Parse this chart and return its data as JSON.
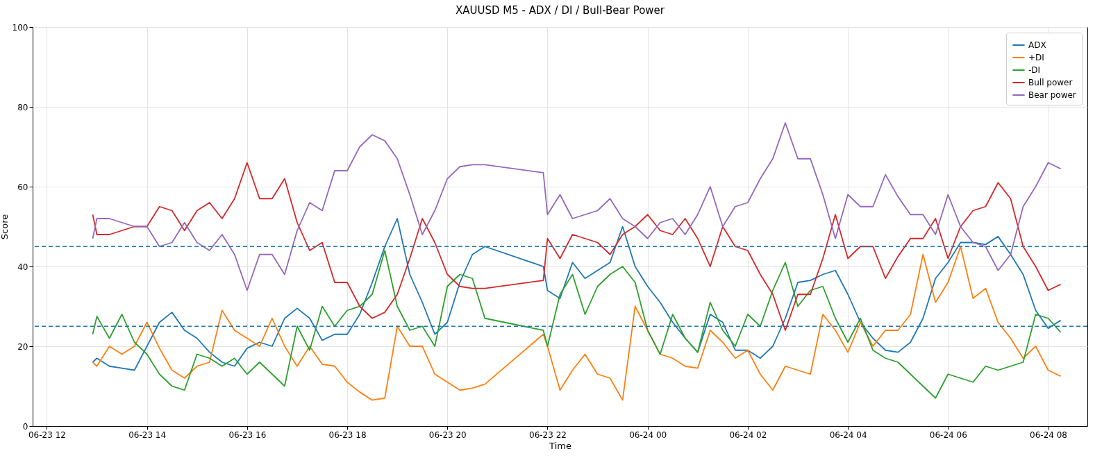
{
  "chart_data": {
    "type": "line",
    "title": "XAUUSD M5 - ADX / DI / Bull-Bear Power",
    "xlabel": "Time",
    "ylabel": "Score",
    "x": [
      "--06-23T12:55",
      "--06-23T13:00",
      "--06-23T13:15",
      "--06-23T13:30",
      "--06-23T13:45",
      "--06-23T14:00",
      "--06-23T14:15",
      "--06-23T14:30",
      "--06-23T14:45",
      "--06-23T15:00",
      "--06-23T15:15",
      "--06-23T15:30",
      "--06-23T15:45",
      "--06-23T16:00",
      "--06-23T16:15",
      "--06-23T16:30",
      "--06-23T16:45",
      "--06-23T17:00",
      "--06-23T17:15",
      "--06-23T17:30",
      "--06-23T17:45",
      "--06-23T18:00",
      "--06-23T18:15",
      "--06-23T18:30",
      "--06-23T18:45",
      "--06-23T19:00",
      "--06-23T19:15",
      "--06-23T19:30",
      "--06-23T19:45",
      "--06-23T20:00",
      "--06-23T20:15",
      "--06-23T20:30",
      "--06-23T20:45",
      "--06-23T21:55",
      "--06-23T22:00",
      "--06-23T22:15",
      "--06-23T22:30",
      "--06-23T22:45",
      "--06-23T23:00",
      "--06-23T23:15",
      "--06-23T23:30",
      "--06-23T23:45",
      "--06-24T00:00",
      "--06-24T00:15",
      "--06-24T00:30",
      "--06-24T00:45",
      "--06-24T01:00",
      "--06-24T01:15",
      "--06-24T01:30",
      "--06-24T01:45",
      "--06-24T02:00",
      "--06-24T02:15",
      "--06-24T02:30",
      "--06-24T02:45",
      "--06-24T03:00",
      "--06-24T03:15",
      "--06-24T03:30",
      "--06-24T03:45",
      "--06-24T04:00",
      "--06-24T04:15",
      "--06-24T04:30",
      "--06-24T04:45",
      "--06-24T05:00",
      "--06-24T05:15",
      "--06-24T05:30",
      "--06-24T05:45",
      "--06-24T06:00",
      "--06-24T06:15",
      "--06-24T06:30",
      "--06-24T06:45",
      "--06-24T07:00",
      "--06-24T07:15",
      "--06-24T07:30",
      "--06-24T07:45",
      "--06-24T08:00",
      "--06-24T08:15"
    ],
    "series": [
      {
        "name": "ADX",
        "color": "#1f77b4",
        "values": [
          16,
          17,
          15,
          14.5,
          14,
          20,
          26,
          28.5,
          24,
          22,
          18.5,
          16,
          15,
          19.5,
          21,
          20,
          27,
          29.5,
          27,
          21.5,
          23,
          23,
          28,
          36,
          45,
          52,
          38,
          31,
          23,
          26,
          36,
          43,
          45,
          40,
          34,
          32,
          41,
          37,
          39,
          41,
          50,
          40,
          35,
          31,
          26,
          22,
          18.5,
          28,
          26,
          19,
          19,
          17,
          20,
          27,
          36,
          36.5,
          38,
          39,
          33,
          26,
          22,
          19,
          18.5,
          21,
          27,
          37,
          41,
          46,
          46,
          45.5,
          47.5,
          43,
          38,
          29,
          24.5,
          26.5
        ]
      },
      {
        "name": "+DI",
        "color": "#ff7f0e",
        "values": [
          16,
          15,
          20,
          18,
          20,
          26,
          19.5,
          14,
          12,
          15,
          16,
          29,
          24,
          22,
          20,
          27,
          20,
          15,
          20,
          15.5,
          15,
          11,
          8.5,
          6.5,
          7,
          25,
          20,
          20,
          13,
          11,
          9,
          9.5,
          10.5,
          23,
          20,
          9,
          14,
          18,
          13,
          12,
          6.5,
          30,
          24,
          18,
          17,
          15,
          14.5,
          24,
          21,
          17,
          19,
          13,
          9,
          15,
          14,
          13,
          28,
          24,
          18.5,
          26,
          20,
          24,
          24,
          28,
          43,
          31,
          36,
          45,
          32,
          34.5,
          26,
          22,
          17,
          20,
          14,
          12.5
        ]
      },
      {
        "name": "-DI",
        "color": "#2ca02c",
        "values": [
          23,
          27.5,
          22,
          28,
          21,
          18,
          13,
          10,
          9,
          18,
          17,
          15,
          17,
          13,
          16,
          13,
          10,
          25,
          19,
          30,
          25,
          29,
          30,
          33,
          44,
          30,
          24,
          25,
          20,
          35,
          38,
          37,
          27,
          24,
          20,
          33,
          38,
          28,
          35,
          38,
          40,
          36,
          24,
          18,
          28,
          22,
          18.5,
          31,
          24,
          20,
          28,
          25,
          34,
          41,
          30,
          34,
          35,
          27,
          21,
          27,
          19,
          17,
          16,
          13,
          10,
          7,
          13,
          12,
          11,
          15,
          14,
          15,
          16,
          28,
          27,
          23.5
        ]
      },
      {
        "name": "Bull power",
        "color": "#d62728",
        "values": [
          53,
          48,
          48,
          49,
          50,
          50,
          55,
          54,
          49,
          54,
          56,
          52,
          57,
          66,
          57,
          57,
          62,
          51,
          44,
          46,
          36,
          36,
          30,
          27,
          28.5,
          33,
          42,
          52,
          46,
          38,
          35,
          34.5,
          34.5,
          36.5,
          47,
          42,
          48,
          47,
          46,
          43,
          48,
          50,
          53,
          49,
          48,
          52,
          47,
          40,
          50,
          45,
          44,
          38,
          33,
          24,
          33,
          33,
          42,
          53,
          42,
          45,
          45,
          37,
          42.5,
          47,
          47,
          52,
          42,
          50,
          54,
          55,
          61,
          57,
          45,
          40,
          34,
          35.5
        ]
      },
      {
        "name": "Bear power",
        "color": "#9467bd",
        "values": [
          47,
          52,
          52,
          51,
          50,
          50,
          45,
          46,
          51,
          46,
          44,
          48,
          43,
          34,
          43,
          43,
          38,
          49,
          56,
          54,
          64,
          64,
          70,
          73,
          71.5,
          67,
          58,
          48,
          54,
          62,
          65,
          65.5,
          65.5,
          63.5,
          53,
          58,
          52,
          53,
          54,
          57,
          52,
          50,
          47,
          51,
          52,
          48,
          53,
          60,
          50,
          55,
          56,
          62,
          67,
          76,
          67,
          67,
          58,
          47,
          58,
          55,
          55,
          63,
          57.5,
          53,
          53,
          48,
          58,
          50,
          46,
          45,
          39,
          43,
          55,
          60,
          66,
          64.5
        ]
      }
    ],
    "xlim": [
      "--06-23T11:43",
      "--06-24T08:47"
    ],
    "xticks": [
      {
        "value": "--06-23T12:00",
        "label": "06-23 12"
      },
      {
        "value": "--06-23T14:00",
        "label": "06-23 14"
      },
      {
        "value": "--06-23T16:00",
        "label": "06-23 16"
      },
      {
        "value": "--06-23T18:00",
        "label": "06-23 18"
      },
      {
        "value": "--06-23T20:00",
        "label": "06-23 20"
      },
      {
        "value": "--06-23T22:00",
        "label": "06-23 22"
      },
      {
        "value": "--06-24T00:00",
        "label": "06-24 00"
      },
      {
        "value": "--06-24T02:00",
        "label": "06-24 02"
      },
      {
        "value": "--06-24T04:00",
        "label": "06-24 04"
      },
      {
        "value": "--06-24T06:00",
        "label": "06-24 06"
      },
      {
        "value": "--06-24T08:00",
        "label": "06-24 08"
      }
    ],
    "ylim": [
      0,
      100
    ],
    "yticks": [
      0,
      20,
      40,
      60,
      80,
      100
    ],
    "ref_lines": [
      {
        "axis": "y",
        "value": 45,
        "color": "#1f77b4",
        "line_style": "dashed"
      },
      {
        "axis": "y",
        "value": 25,
        "color": "#1f77b4",
        "line_style": "dashed"
      }
    ],
    "grid": true,
    "legend": "top right",
    "line_style": "solid"
  }
}
